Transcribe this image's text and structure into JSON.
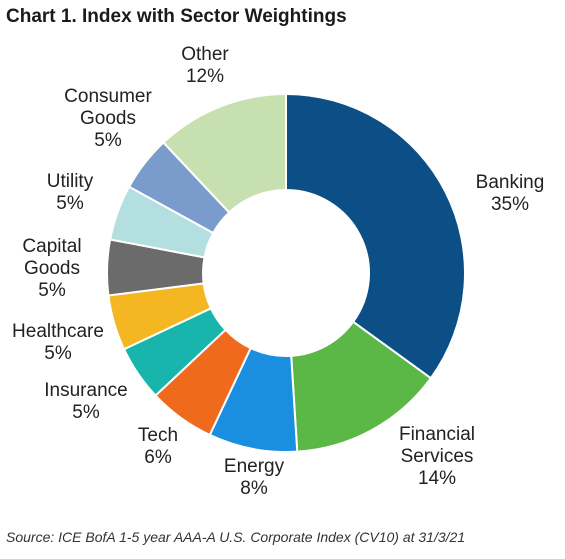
{
  "chart_data": {
    "type": "pie",
    "title": "Chart 1. Index with Sector Weightings",
    "source": "Source: ICE BofA 1-5 year AAA-A U.S. Corporate Index (CV10) at 31/3/21",
    "donut": true,
    "slices": [
      {
        "label": "Banking",
        "value": 35,
        "value_label": "35%",
        "color": "#0b4f86"
      },
      {
        "label": "Financial Services",
        "value": 14,
        "value_label": "14%",
        "color": "#5cb846"
      },
      {
        "label": "Energy",
        "value": 8,
        "value_label": "8%",
        "color": "#1a8fdf"
      },
      {
        "label": "Tech",
        "value": 6,
        "value_label": "6%",
        "color": "#f06a1e"
      },
      {
        "label": "Insurance",
        "value": 5,
        "value_label": "5%",
        "color": "#18b5ac"
      },
      {
        "label": "Healthcare",
        "value": 5,
        "value_label": "5%",
        "color": "#f4b621"
      },
      {
        "label": "Capital Goods",
        "value": 5,
        "value_label": "5%",
        "color": "#6b6b6b"
      },
      {
        "label": "Utility",
        "value": 5,
        "value_label": "5%",
        "color": "#b3dfe0"
      },
      {
        "label": "Consumer Goods",
        "value": 5,
        "value_label": "5%",
        "color": "#7a9ccc"
      },
      {
        "label": "Other",
        "value": 12,
        "value_label": "12%",
        "color": "#c6e0b0"
      }
    ]
  }
}
